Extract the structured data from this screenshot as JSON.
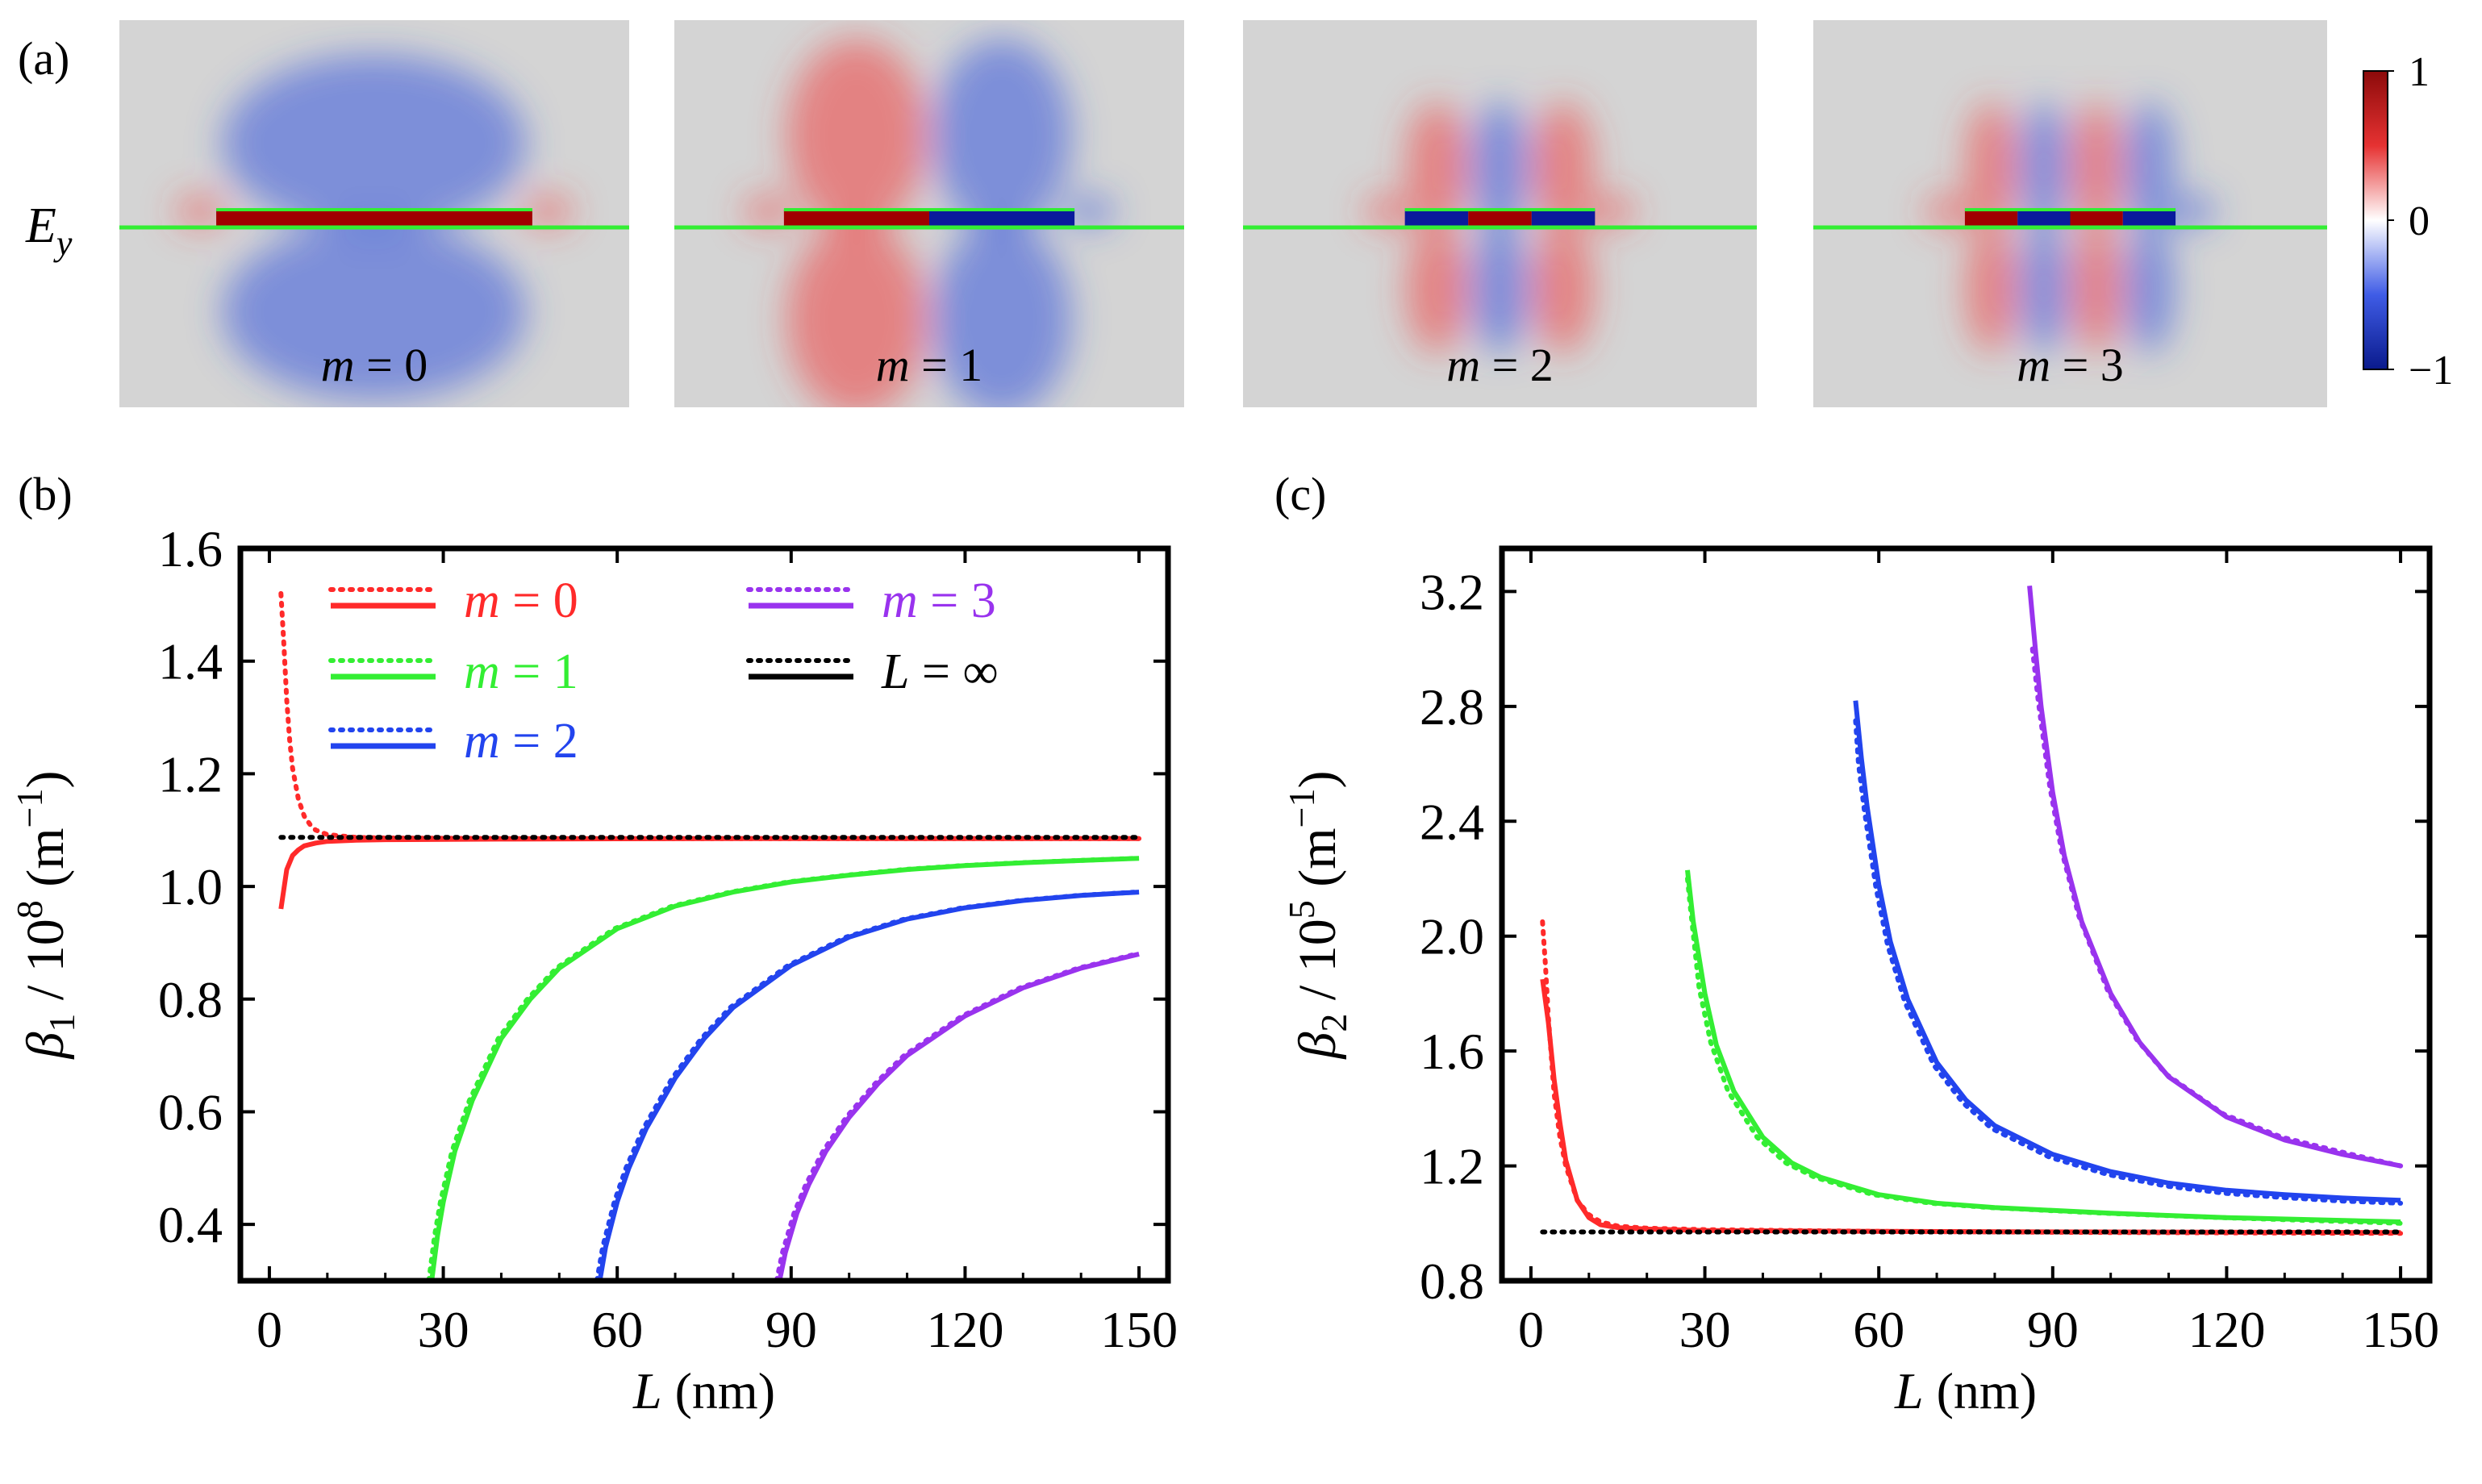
{
  "panel_labels": [
    "(a)",
    "(b)",
    "(c)"
  ],
  "field_panel": {
    "ylabel_main": "E",
    "ylabel_sub": "y",
    "modes": [
      {
        "var": "m",
        "eq": " = ",
        "value": "0",
        "pattern": "0"
      },
      {
        "var": "m",
        "eq": " = ",
        "value": "1",
        "pattern": "1"
      },
      {
        "var": "m",
        "eq": " = ",
        "value": "2",
        "pattern": "2"
      },
      {
        "var": "m",
        "eq": " = ",
        "value": "3",
        "pattern": "3"
      }
    ],
    "colorbar": {
      "ticks": [
        "1",
        "0",
        "−1"
      ],
      "min": -1,
      "max": 1,
      "colors": [
        "#0a1a8c",
        "#3f5ce6",
        "#ffffff",
        "#e63232",
        "#8c0a0a"
      ]
    }
  },
  "colors": {
    "m0": "#ff2a2a",
    "m1": "#33ee33",
    "m2": "#2244ee",
    "m3": "#9933ee",
    "inf": "#000000",
    "background": "#ffffff"
  },
  "chart_data": [
    {
      "type": "line",
      "panel": "(b)",
      "xlabel": "L (nm)",
      "ylabel": "β1 / 10^8 (m−1)",
      "xlim": [
        -5,
        155
      ],
      "ylim": [
        0.3,
        1.6
      ],
      "xticks": [
        "0",
        "30",
        "60",
        "90",
        "120",
        "150"
      ],
      "yticks": [
        "0.4",
        "0.6",
        "0.8",
        "1.0",
        "1.2",
        "1.4",
        "1.6"
      ],
      "legend": [
        {
          "var": "m",
          "eq": " = ",
          "value": "0",
          "color": "#ff2a2a"
        },
        {
          "var": "m",
          "eq": " = ",
          "value": "1",
          "color": "#33ee33"
        },
        {
          "var": "m",
          "eq": " = ",
          "value": "2",
          "color": "#2244ee"
        },
        {
          "var": "m",
          "eq": " = ",
          "value": "3",
          "color": "#9933ee"
        },
        {
          "var": "L",
          "eq": " = ",
          "value": "∞",
          "color": "#000000"
        }
      ],
      "series": [
        {
          "name": "m = 0 (solid)",
          "color": "#ff2a2a",
          "dash": "solid",
          "x": [
            2,
            3,
            4,
            5,
            6,
            8,
            10,
            15,
            20,
            40,
            80,
            150
          ],
          "y": [
            0.96,
            1.03,
            1.055,
            1.065,
            1.072,
            1.077,
            1.08,
            1.082,
            1.083,
            1.084,
            1.085,
            1.085
          ]
        },
        {
          "name": "m = 0 (dotted)",
          "color": "#ff2a2a",
          "dash": "dotted",
          "x": [
            2,
            2.5,
            3,
            3.5,
            4,
            5,
            6,
            7,
            8,
            10,
            15,
            20,
            40,
            80,
            150
          ],
          "y": [
            1.52,
            1.43,
            1.33,
            1.26,
            1.21,
            1.155,
            1.125,
            1.11,
            1.1,
            1.092,
            1.087,
            1.086,
            1.085,
            1.085,
            1.085
          ]
        },
        {
          "name": "m = 1 (solid)",
          "color": "#33ee33",
          "dash": "solid",
          "x": [
            28,
            29,
            30,
            32,
            35,
            40,
            45,
            50,
            60,
            70,
            80,
            90,
            100,
            110,
            120,
            130,
            140,
            150
          ],
          "y": [
            0.3,
            0.38,
            0.44,
            0.53,
            0.62,
            0.73,
            0.8,
            0.855,
            0.925,
            0.965,
            0.99,
            1.008,
            1.02,
            1.03,
            1.037,
            1.042,
            1.046,
            1.05
          ]
        },
        {
          "name": "m = 1 (dotted)",
          "color": "#33ee33",
          "dash": "dotted",
          "x": [
            27.5,
            28.5,
            29.5,
            31.5,
            34.5,
            39.5,
            44.5,
            49.5,
            59.5,
            69.5,
            79.5,
            89.5,
            99.5,
            109.5,
            119.5,
            129.5,
            139.5,
            149.5
          ],
          "y": [
            0.3,
            0.38,
            0.44,
            0.53,
            0.62,
            0.73,
            0.8,
            0.855,
            0.925,
            0.965,
            0.99,
            1.008,
            1.02,
            1.03,
            1.037,
            1.042,
            1.046,
            1.05
          ]
        },
        {
          "name": "m = 2 (solid)",
          "color": "#2244ee",
          "dash": "solid",
          "x": [
            57,
            58,
            60,
            62,
            65,
            70,
            75,
            80,
            90,
            100,
            110,
            120,
            130,
            140,
            150
          ],
          "y": [
            0.3,
            0.36,
            0.44,
            0.5,
            0.57,
            0.66,
            0.73,
            0.785,
            0.86,
            0.91,
            0.942,
            0.962,
            0.975,
            0.984,
            0.99
          ]
        },
        {
          "name": "m = 2 (dotted)",
          "color": "#2244ee",
          "dash": "dotted",
          "x": [
            56.5,
            57.5,
            59.5,
            61.5,
            64.5,
            69.5,
            74.5,
            79.5,
            89.5,
            99.5,
            109.5,
            119.5,
            129.5,
            139.5,
            149.5
          ],
          "y": [
            0.3,
            0.36,
            0.44,
            0.5,
            0.57,
            0.66,
            0.73,
            0.785,
            0.86,
            0.91,
            0.942,
            0.962,
            0.975,
            0.984,
            0.99
          ]
        },
        {
          "name": "m = 3 (solid)",
          "color": "#9933ee",
          "dash": "solid",
          "x": [
            88,
            89,
            91,
            93,
            96,
            100,
            105,
            110,
            120,
            130,
            140,
            150
          ],
          "y": [
            0.3,
            0.35,
            0.42,
            0.47,
            0.53,
            0.59,
            0.65,
            0.7,
            0.77,
            0.82,
            0.855,
            0.88
          ]
        },
        {
          "name": "m = 3 (dotted)",
          "color": "#9933ee",
          "dash": "dotted",
          "x": [
            87.5,
            88.5,
            90.5,
            92.5,
            95.5,
            99.5,
            104.5,
            109.5,
            119.5,
            129.5,
            139.5,
            149.5
          ],
          "y": [
            0.3,
            0.35,
            0.42,
            0.47,
            0.53,
            0.59,
            0.65,
            0.7,
            0.77,
            0.82,
            0.855,
            0.88
          ]
        },
        {
          "name": "L = ∞",
          "color": "#000000",
          "dash": "dotted",
          "x": [
            2,
            150
          ],
          "y": [
            1.087,
            1.087
          ]
        }
      ]
    },
    {
      "type": "line",
      "panel": "(c)",
      "xlabel": "L (nm)",
      "ylabel": "β2 / 10^5 (m−1)",
      "xlim": [
        -5,
        155
      ],
      "ylim": [
        0.8,
        3.35
      ],
      "xticks": [
        "0",
        "30",
        "60",
        "90",
        "120",
        "150"
      ],
      "yticks": [
        "0.8",
        "1.2",
        "1.6",
        "2.0",
        "2.4",
        "2.8",
        "3.2"
      ],
      "series": [
        {
          "name": "m = 0 (solid)",
          "color": "#ff2a2a",
          "dash": "solid",
          "x": [
            2,
            3,
            4,
            5,
            6,
            8,
            10,
            12,
            15,
            20,
            30,
            60,
            100,
            150
          ],
          "y": [
            1.85,
            1.7,
            1.5,
            1.35,
            1.22,
            1.08,
            1.02,
            0.995,
            0.985,
            0.98,
            0.975,
            0.972,
            0.97,
            0.968
          ]
        },
        {
          "name": "m = 0 (dotted)",
          "color": "#ff2a2a",
          "dash": "dotted",
          "x": [
            2,
            2.5,
            3,
            4,
            5,
            6,
            8,
            10,
            12,
            15,
            20,
            30,
            60,
            100,
            150
          ],
          "y": [
            2.05,
            1.9,
            1.72,
            1.45,
            1.3,
            1.2,
            1.08,
            1.03,
            1.005,
            0.99,
            0.983,
            0.978,
            0.972,
            0.968,
            0.965
          ]
        },
        {
          "name": "m = 1 (solid)",
          "color": "#33ee33",
          "dash": "solid",
          "x": [
            27,
            28,
            30,
            32,
            35,
            40,
            45,
            50,
            60,
            70,
            80,
            90,
            100,
            120,
            150
          ],
          "y": [
            2.23,
            2.05,
            1.8,
            1.62,
            1.46,
            1.3,
            1.21,
            1.16,
            1.1,
            1.07,
            1.055,
            1.045,
            1.035,
            1.02,
            1.005
          ]
        },
        {
          "name": "m = 1 (dotted)",
          "color": "#33ee33",
          "dash": "dotted",
          "x": [
            27,
            27.5,
            29,
            31,
            34,
            39,
            44,
            49,
            59,
            69,
            79,
            89,
            99,
            119,
            150
          ],
          "y": [
            2.2,
            2.1,
            1.82,
            1.63,
            1.46,
            1.3,
            1.21,
            1.16,
            1.1,
            1.07,
            1.055,
            1.045,
            1.035,
            1.02,
            1.0
          ]
        },
        {
          "name": "m = 2 (solid)",
          "color": "#2244ee",
          "dash": "solid",
          "x": [
            56,
            57,
            58,
            60,
            62,
            65,
            70,
            75,
            80,
            90,
            100,
            110,
            120,
            130,
            140,
            150
          ],
          "y": [
            2.82,
            2.62,
            2.45,
            2.18,
            1.98,
            1.78,
            1.56,
            1.43,
            1.34,
            1.24,
            1.18,
            1.14,
            1.115,
            1.1,
            1.088,
            1.08
          ]
        },
        {
          "name": "m = 2 (dotted)",
          "color": "#2244ee",
          "dash": "dotted",
          "x": [
            56,
            56.5,
            57.5,
            59.5,
            61.5,
            64.5,
            69.5,
            74.5,
            79.5,
            89.5,
            99.5,
            109.5,
            119.5,
            129.5,
            139.5,
            150
          ],
          "y": [
            2.75,
            2.6,
            2.44,
            2.17,
            1.97,
            1.77,
            1.55,
            1.42,
            1.33,
            1.23,
            1.17,
            1.13,
            1.105,
            1.09,
            1.078,
            1.07
          ]
        },
        {
          "name": "m = 3 (solid)",
          "color": "#9933ee",
          "dash": "solid",
          "x": [
            86,
            87,
            88,
            90,
            92,
            95,
            100,
            105,
            110,
            120,
            130,
            140,
            150
          ],
          "y": [
            3.22,
            3.0,
            2.8,
            2.5,
            2.28,
            2.05,
            1.8,
            1.63,
            1.51,
            1.37,
            1.29,
            1.24,
            1.2
          ]
        },
        {
          "name": "m = 3 (dotted)",
          "color": "#9933ee",
          "dash": "dotted",
          "x": [
            86.5,
            87.5,
            89.5,
            91.5,
            94.5,
            99.5,
            104.5,
            109.5,
            119.5,
            129.5,
            139.5,
            150
          ],
          "y": [
            3.0,
            2.82,
            2.52,
            2.3,
            2.07,
            1.81,
            1.64,
            1.52,
            1.38,
            1.3,
            1.25,
            1.2
          ]
        },
        {
          "name": "L = ∞",
          "color": "#000000",
          "dash": "dotted",
          "x": [
            2,
            150
          ],
          "y": [
            0.97,
            0.97
          ]
        }
      ]
    }
  ]
}
